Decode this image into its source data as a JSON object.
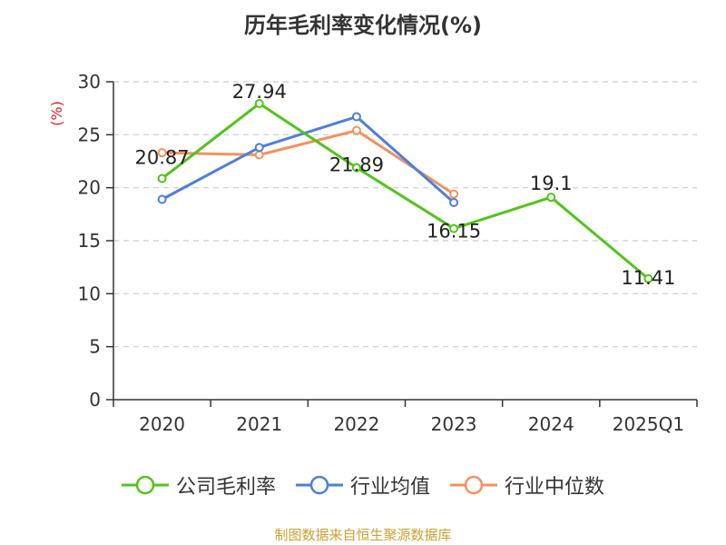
{
  "chart_data": {
    "type": "line",
    "title": "历年毛利率变化情况(%)",
    "ylabel": "(%)",
    "categories": [
      "2020",
      "2021",
      "2022",
      "2023",
      "2024",
      "2025Q1"
    ],
    "ylim": [
      0,
      30
    ],
    "yticks": [
      0,
      5,
      10,
      15,
      20,
      25,
      30
    ],
    "grid": true,
    "legend_position": "bottom",
    "series": [
      {
        "name": "公司毛利率",
        "color": "#52c41a",
        "values": [
          20.87,
          27.94,
          21.89,
          16.15,
          19.1,
          11.41
        ],
        "labels": true
      },
      {
        "name": "行业均值",
        "color": "#4c7fdb",
        "values": [
          18.9,
          23.8,
          26.7,
          18.6,
          null,
          null
        ],
        "labels": false
      },
      {
        "name": "行业中位数",
        "color": "#f5915c",
        "values": [
          23.3,
          23.1,
          25.4,
          19.4,
          null,
          null
        ],
        "labels": false
      }
    ]
  },
  "source": "制图数据来自恒生聚源数据库"
}
